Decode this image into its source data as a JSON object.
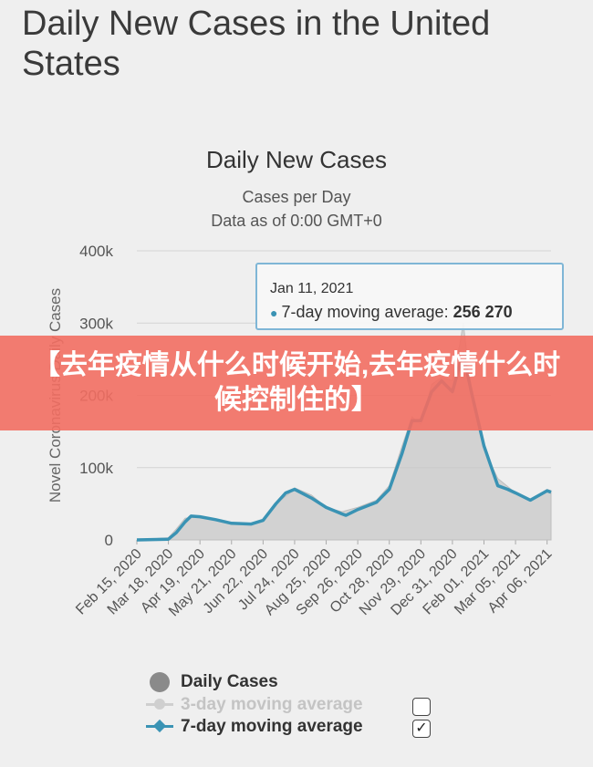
{
  "page": {
    "title": "Daily New Cases in the United States",
    "banner": "【去年疫情从什么时候开始,去年疫情什么时候控制住的】"
  },
  "chart_data": {
    "type": "area",
    "title": "Daily New Cases",
    "subtitle": "Cases per Day",
    "subtitle2": "Data as of 0:00 GMT+0",
    "ylabel": "Novel Coronavirus Daily Cases",
    "ylim": [
      0,
      400000
    ],
    "yticks": [
      0,
      100000,
      200000,
      300000,
      400000
    ],
    "ytick_labels": [
      "0",
      "100k",
      "200k",
      "300k",
      "400k"
    ],
    "xlim": [
      "2020-02-15",
      "2021-04-10"
    ],
    "xtick_labels": [
      "Feb 15, 2020",
      "Mar 18, 2020",
      "Apr 19, 2020",
      "May 21, 2020",
      "Jun 22, 2020",
      "Jul 24, 2020",
      "Aug 25, 2020",
      "Sep 26, 2020",
      "Oct 28, 2020",
      "Nov 29, 2020",
      "Dec 31, 2020",
      "Feb 01, 2021",
      "Mar 05, 2021",
      "Apr 06, 2021"
    ],
    "xtick_dates": [
      "2020-02-15",
      "2020-03-18",
      "2020-04-19",
      "2020-05-21",
      "2020-06-22",
      "2020-07-24",
      "2020-08-25",
      "2020-09-26",
      "2020-10-28",
      "2020-11-29",
      "2020-12-31",
      "2021-02-01",
      "2021-03-05",
      "2021-04-06"
    ],
    "grid": true,
    "legend_position": "bottom",
    "series": [
      {
        "name": "Daily Cases",
        "color": "#c8c8c8",
        "dates": [
          "2020-02-15",
          "2020-03-18",
          "2020-03-26",
          "2020-04-04",
          "2020-04-19",
          "2020-05-05",
          "2020-05-21",
          "2020-06-10",
          "2020-06-22",
          "2020-07-05",
          "2020-07-20",
          "2020-07-24",
          "2020-08-10",
          "2020-08-25",
          "2020-09-10",
          "2020-09-26",
          "2020-10-15",
          "2020-10-28",
          "2020-11-10",
          "2020-11-20",
          "2020-11-29",
          "2020-12-10",
          "2020-12-20",
          "2020-12-31",
          "2021-01-08",
          "2021-01-11",
          "2021-01-20",
          "2021-02-01",
          "2021-02-15",
          "2021-03-05",
          "2021-03-20",
          "2021-04-06",
          "2021-04-10"
        ],
        "values": [
          0,
          3000,
          15000,
          30000,
          32000,
          27000,
          24000,
          22000,
          28000,
          50000,
          66000,
          72000,
          62000,
          45000,
          39000,
          45000,
          55000,
          75000,
          130000,
          170000,
          160000,
          215000,
          225000,
          220000,
          275000,
          300000,
          195000,
          125000,
          85000,
          65000,
          55000,
          70000,
          68000
        ]
      },
      {
        "name": "3-day moving average",
        "color": "#c0c0c0",
        "visible": false
      },
      {
        "name": "7-day moving average",
        "color": "#3a93b4",
        "visible": true,
        "dates": [
          "2020-02-15",
          "2020-03-18",
          "2020-03-26",
          "2020-04-04",
          "2020-04-10",
          "2020-04-19",
          "2020-05-05",
          "2020-05-21",
          "2020-06-10",
          "2020-06-22",
          "2020-07-05",
          "2020-07-15",
          "2020-07-24",
          "2020-08-10",
          "2020-08-25",
          "2020-09-10",
          "2020-09-14",
          "2020-09-26",
          "2020-10-15",
          "2020-10-28",
          "2020-11-10",
          "2020-11-20",
          "2020-11-29",
          "2020-12-10",
          "2020-12-20",
          "2020-12-31",
          "2021-01-08",
          "2021-01-11",
          "2021-01-20",
          "2021-02-01",
          "2021-02-15",
          "2021-02-25",
          "2021-03-05",
          "2021-03-20",
          "2021-04-06",
          "2021-04-10"
        ],
        "values": [
          0,
          1000,
          10000,
          25000,
          33000,
          32000,
          28000,
          23000,
          22000,
          27000,
          50000,
          65000,
          70000,
          58000,
          45000,
          36000,
          34000,
          42000,
          52000,
          70000,
          120000,
          165000,
          165000,
          205000,
          220000,
          205000,
          245000,
          256270,
          200000,
          130000,
          75000,
          70000,
          65000,
          55000,
          68000,
          66000
        ]
      }
    ],
    "tooltip": {
      "date": "Jan 11, 2021",
      "series": "7-day moving average",
      "separator": ":",
      "value_label": "256 270",
      "value": 256270
    }
  },
  "legend": {
    "items": [
      {
        "label": "Daily Cases",
        "enabled": true
      },
      {
        "label": "3-day moving average",
        "enabled": false
      },
      {
        "label": "7-day moving average",
        "enabled": true
      }
    ]
  }
}
